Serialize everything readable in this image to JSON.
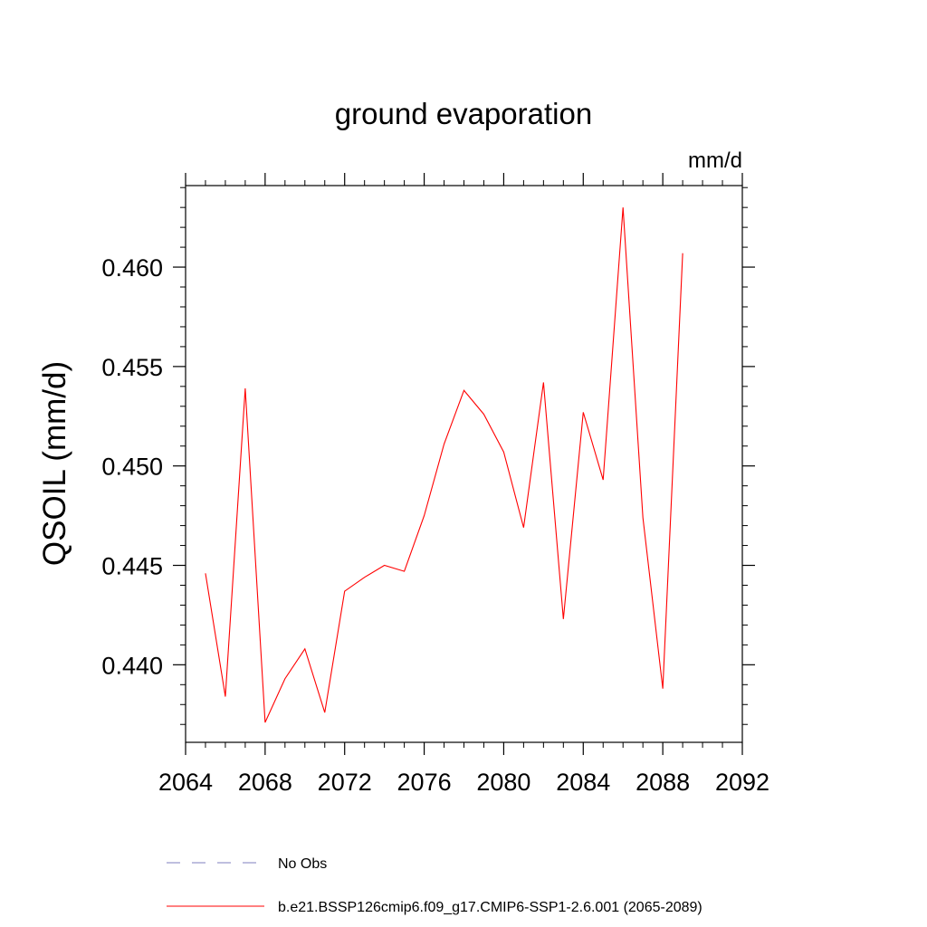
{
  "chart_data": {
    "type": "line",
    "title": "ground evaporation",
    "units_label": "mm/d",
    "ylabel": "QSOIL  (mm/d)",
    "xlabel": "",
    "xlim": [
      2064,
      2092
    ],
    "ylim": [
      0.4361,
      0.4641
    ],
    "x_ticks": [
      "2064",
      "2068",
      "2072",
      "2076",
      "2080",
      "2084",
      "2088",
      "2092"
    ],
    "y_ticks": [
      "0.440",
      "0.445",
      "0.450",
      "0.455",
      "0.460"
    ],
    "grid": false,
    "legend_position": "bottom",
    "series": [
      {
        "name": "b.e21.BSSP126cmip6.f09_g17.CMIP6-SSP1-2.6.001 (2065-2089)",
        "color": "#ff0000",
        "style": "solid",
        "x": [
          2065,
          2066,
          2067,
          2068,
          2069,
          2070,
          2071,
          2072,
          2073,
          2074,
          2075,
          2076,
          2077,
          2078,
          2079,
          2080,
          2081,
          2082,
          2083,
          2084,
          2085,
          2086,
          2087,
          2088,
          2089
        ],
        "y": [
          0.4446,
          0.4384,
          0.4539,
          0.4371,
          0.4393,
          0.4408,
          0.4376,
          0.4437,
          0.4444,
          0.445,
          0.4447,
          0.4475,
          0.4511,
          0.4538,
          0.4526,
          0.4507,
          0.4469,
          0.4542,
          0.4423,
          0.4527,
          0.4493,
          0.463,
          0.4474,
          0.4388,
          0.4607
        ]
      }
    ],
    "legend": [
      {
        "label": "No Obs",
        "color": "#7f7fbf",
        "style": "dashed"
      },
      {
        "label": "b.e21.BSSP126cmip6.f09_g17.CMIP6-SSP1-2.6.001 (2065-2089)",
        "color": "#ff0000",
        "style": "solid"
      }
    ]
  }
}
